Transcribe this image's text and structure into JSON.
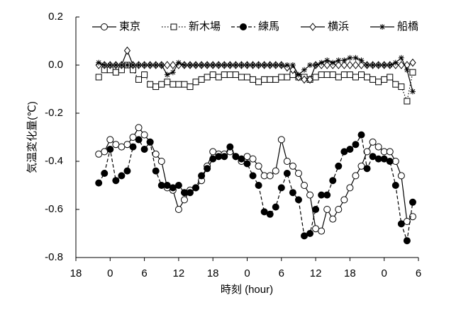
{
  "chart_data": {
    "type": "line",
    "xlabel": "時刻 (hour)",
    "ylabel": "気温変化量(℃)",
    "x": [
      -2,
      -1,
      0,
      1,
      2,
      3,
      4,
      5,
      6,
      7,
      8,
      9,
      10,
      11,
      12,
      13,
      14,
      15,
      16,
      17,
      18,
      19,
      20,
      21,
      22,
      23,
      24,
      25,
      26,
      27,
      28,
      29,
      30,
      31,
      32,
      33,
      34,
      35,
      36,
      37,
      38,
      39,
      40,
      41,
      42,
      43,
      44,
      45,
      46,
      47,
      48,
      49,
      50,
      51,
      52,
      53
    ],
    "xlim": [
      -6,
      54
    ],
    "xticks": [
      {
        "value": -6,
        "label": "18"
      },
      0,
      6,
      12,
      18,
      {
        "value": 24,
        "label": "0"
      },
      {
        "value": 30,
        "label": "6"
      },
      {
        "value": 36,
        "label": "12"
      },
      {
        "value": 42,
        "label": "18"
      },
      {
        "value": 48,
        "label": "0"
      },
      {
        "value": 54,
        "label": "6"
      }
    ],
    "ylim": [
      -0.8,
      0.2
    ],
    "yticks": [
      {
        "value": -0.8,
        "label": "-0.8"
      },
      {
        "value": -0.6,
        "label": "-0.6"
      },
      {
        "value": -0.4,
        "label": "-0.4"
      },
      {
        "value": -0.2,
        "label": "-0.2"
      },
      {
        "value": 0,
        "label": "0.0"
      },
      {
        "value": 0.2,
        "label": "0.2"
      }
    ],
    "legend": "top",
    "series": [
      {
        "name": "東京",
        "color": "#000000",
        "marker": "circle-open",
        "dash": "solid",
        "values": [
          -0.37,
          -0.36,
          -0.31,
          -0.33,
          -0.34,
          -0.33,
          -0.3,
          -0.26,
          -0.29,
          -0.32,
          -0.37,
          -0.4,
          -0.51,
          -0.52,
          -0.6,
          -0.56,
          -0.52,
          -0.51,
          -0.48,
          -0.42,
          -0.36,
          -0.37,
          -0.37,
          -0.36,
          -0.38,
          -0.4,
          -0.38,
          -0.39,
          -0.42,
          -0.46,
          -0.46,
          -0.44,
          -0.31,
          -0.4,
          -0.42,
          -0.45,
          -0.5,
          -0.54,
          -0.68,
          -0.69,
          -0.6,
          -0.64,
          -0.6,
          -0.56,
          -0.51,
          -0.46,
          -0.42,
          -0.36,
          -0.32,
          -0.34,
          -0.36,
          -0.36,
          -0.4,
          -0.46,
          -0.65,
          -0.63
        ]
      },
      {
        "name": "新木場",
        "color": "#000000",
        "marker": "square-open",
        "dash": "dotted",
        "values": [
          -0.05,
          -0.02,
          -0.02,
          -0.03,
          -0.02,
          0.0,
          -0.02,
          -0.06,
          -0.04,
          -0.08,
          -0.09,
          -0.08,
          -0.07,
          -0.08,
          -0.08,
          -0.08,
          -0.09,
          -0.07,
          -0.06,
          -0.05,
          -0.04,
          -0.05,
          -0.04,
          -0.04,
          -0.04,
          -0.05,
          -0.05,
          -0.06,
          -0.07,
          -0.06,
          -0.06,
          -0.06,
          -0.05,
          -0.05,
          -0.04,
          -0.05,
          -0.05,
          -0.06,
          -0.05,
          -0.04,
          -0.04,
          -0.04,
          -0.05,
          -0.04,
          -0.04,
          -0.05,
          -0.04,
          -0.05,
          -0.06,
          -0.07,
          -0.06,
          -0.05,
          -0.08,
          -0.09,
          -0.15,
          -0.03
        ]
      },
      {
        "name": "練馬",
        "color": "#000000",
        "marker": "circle-filled",
        "dash": "dashed",
        "values": [
          -0.49,
          -0.45,
          -0.35,
          -0.48,
          -0.46,
          -0.44,
          -0.34,
          -0.31,
          -0.35,
          -0.32,
          -0.44,
          -0.5,
          -0.5,
          -0.51,
          -0.5,
          -0.53,
          -0.53,
          -0.51,
          -0.46,
          -0.43,
          -0.39,
          -0.38,
          -0.38,
          -0.34,
          -0.38,
          -0.39,
          -0.41,
          -0.46,
          -0.5,
          -0.61,
          -0.62,
          -0.59,
          -0.51,
          -0.45,
          -0.53,
          -0.56,
          -0.71,
          -0.7,
          -0.6,
          -0.54,
          -0.54,
          -0.48,
          -0.42,
          -0.36,
          -0.35,
          -0.33,
          -0.29,
          -0.43,
          -0.38,
          -0.39,
          -0.39,
          -0.4,
          -0.5,
          -0.66,
          -0.73,
          -0.57
        ]
      },
      {
        "name": "横浜",
        "color": "#000000",
        "marker": "diamond-open",
        "dash": "solid",
        "values": [
          0.0,
          0.0,
          0.0,
          0.0,
          0.0,
          0.06,
          0.0,
          0.0,
          0.0,
          0.0,
          0.0,
          0.0,
          0.0,
          0.0,
          0.0,
          0.0,
          0.0,
          0.0,
          0.0,
          0.0,
          0.0,
          0.0,
          0.0,
          0.0,
          0.0,
          0.0,
          0.0,
          0.0,
          0.0,
          0.0,
          0.0,
          0.0,
          0.0,
          -0.01,
          -0.02,
          -0.05,
          -0.06,
          -0.06,
          0.0,
          0.0,
          0.0,
          0.0,
          0.0,
          0.0,
          0.0,
          0.0,
          0.0,
          0.0,
          0.0,
          0.0,
          0.0,
          0.0,
          0.0,
          0.0,
          0.0,
          0.01
        ]
      },
      {
        "name": "船橋",
        "color": "#000000",
        "marker": "asterisk",
        "dash": "solid",
        "values": [
          0.01,
          0.0,
          0.0,
          0.0,
          0.0,
          0.0,
          0.0,
          0.0,
          0.0,
          0.0,
          0.0,
          0.0,
          -0.04,
          -0.03,
          0.01,
          0.0,
          0.0,
          0.0,
          0.0,
          0.0,
          0.0,
          0.0,
          0.0,
          0.0,
          0.0,
          0.0,
          0.0,
          0.0,
          0.0,
          0.0,
          0.0,
          0.0,
          0.0,
          0.0,
          0.0,
          -0.04,
          -0.02,
          0.0,
          0.0,
          0.01,
          0.02,
          0.01,
          0.02,
          0.02,
          0.03,
          0.03,
          0.02,
          0.0,
          0.0,
          0.0,
          0.0,
          0.0,
          0.01,
          0.03,
          -0.02,
          -0.11
        ]
      }
    ]
  }
}
